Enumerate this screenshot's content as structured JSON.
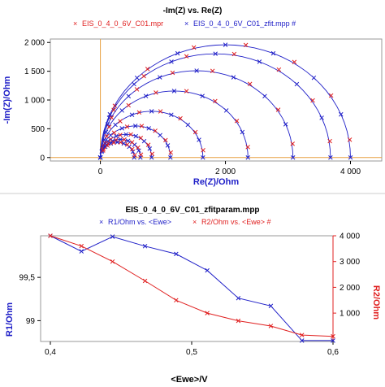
{
  "chart_data": [
    {
      "type": "line",
      "title": "-Im(Z) vs. Re(Z)",
      "legend": {
        "placement": "top",
        "entries": [
          {
            "name": "EIS_0_4_0_6V_C01.mpr",
            "marker": "x",
            "color": "#e02020"
          },
          {
            "name": "EIS_0_4_0_6V_C01_zfit.mpp #",
            "marker": "x",
            "color": "#2020c8"
          }
        ]
      },
      "xlabel": "Re(Z)/Ohm",
      "ylabel": "-Im(Z)/Ohm",
      "xlim": [
        -800,
        4500
      ],
      "ylim": [
        -60,
        2060
      ],
      "xticks": [
        0,
        2000,
        4000
      ],
      "xtick_labels": [
        "0",
        "2 000",
        "4 000"
      ],
      "yticks": [
        0,
        500,
        1000,
        1500,
        2000
      ],
      "ytick_labels": [
        "0",
        "500",
        "1 000",
        "1 500",
        "2 000"
      ],
      "vline_x": 0,
      "hline_y": 0,
      "arc_diameters": [
        4000,
        3680,
        3080,
        2360,
        1640,
        1120,
        820,
        640,
        540
      ],
      "grid": false
    },
    {
      "type": "line",
      "title": "EIS_0_4_0_6V_C01_zfitparam.mpp",
      "legend": {
        "placement": "top",
        "entries": [
          {
            "name": "R1/Ohm vs. <Ewe>",
            "marker": "x",
            "color": "#2020c8"
          },
          {
            "name": "R2/Ohm vs. <Ewe> #",
            "marker": "x",
            "color": "#e02020"
          }
        ]
      },
      "xlabel": "<Ewe>/V",
      "ylabel": "R1/Ohm",
      "ylabel_right": "R2/Ohm",
      "xlim": [
        0.4,
        0.6
      ],
      "xticks": [
        0.4,
        0.5,
        0.6
      ],
      "xtick_labels": [
        "0,4",
        "0,5",
        "0,6"
      ],
      "ylim": [
        98.76,
        99.98
      ],
      "yticks": [
        99,
        99.5
      ],
      "ytick_labels": [
        "99",
        "99,5"
      ],
      "ylim_right": [
        -100,
        4000
      ],
      "yticks_right": [
        1000,
        2000,
        3000,
        4000
      ],
      "ytick_labels_right": [
        "1 000",
        "2 000",
        "3 000",
        "4 000"
      ],
      "series": [
        {
          "name": "R1/Ohm vs. <Ewe>",
          "axis": "left",
          "color": "#2020c8",
          "x": [
            0.4,
            0.422,
            0.444,
            0.467,
            0.489,
            0.511,
            0.533,
            0.556,
            0.578,
            0.6
          ],
          "y": [
            99.98,
            99.8,
            99.97,
            99.86,
            99.77,
            99.58,
            99.26,
            99.17,
            98.77,
            98.77
          ]
        },
        {
          "name": "R2/Ohm vs. <Ewe> #",
          "axis": "right",
          "color": "#e02020",
          "x": [
            0.4,
            0.422,
            0.444,
            0.467,
            0.489,
            0.511,
            0.533,
            0.556,
            0.578,
            0.6
          ],
          "y": [
            4000,
            3600,
            3000,
            2250,
            1500,
            1000,
            700,
            500,
            150,
            100
          ]
        }
      ],
      "grid": false
    }
  ]
}
